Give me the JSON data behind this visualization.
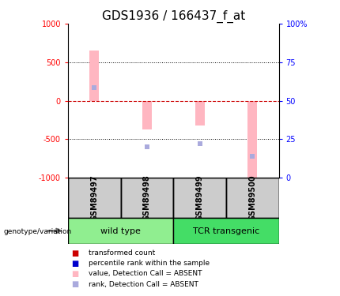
{
  "title": "GDS1936 / 166437_f_at",
  "samples": [
    "GSM89497",
    "GSM89498",
    "GSM89499",
    "GSM89500"
  ],
  "bar_values": [
    650,
    -370,
    -320,
    -1000
  ],
  "rank_values": [
    170,
    -600,
    -560,
    -720
  ],
  "ylim": [
    -1000,
    1000
  ],
  "bar_color": "#FFB6C1",
  "rank_color": "#AAAADD",
  "zero_line_color": "#CC0000",
  "title_fontsize": 11,
  "bar_width": 0.18,
  "wildtype_color": "#90EE90",
  "tcr_color": "#44DD66",
  "sample_box_color": "#CCCCCC",
  "legend_colors": [
    "#CC0000",
    "#0000CC",
    "#FFB6C1",
    "#AAAADD"
  ],
  "legend_labels": [
    "transformed count",
    "percentile rank within the sample",
    "value, Detection Call = ABSENT",
    "rank, Detection Call = ABSENT"
  ]
}
